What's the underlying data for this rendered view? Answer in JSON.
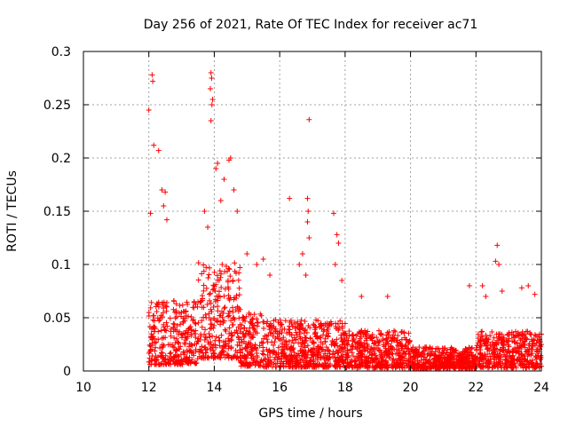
{
  "chart_data": {
    "type": "scatter",
    "title": "Day 256 of 2021, Rate Of TEC Index for receiver ac71",
    "xlabel": "GPS time / hours",
    "ylabel": "ROTI / TECUs",
    "xlim": [
      10,
      24
    ],
    "ylim": [
      0,
      0.3
    ],
    "x_ticks": [
      10,
      12,
      14,
      16,
      18,
      20,
      22,
      24
    ],
    "x_tick_labels": [
      "10",
      "12",
      "14",
      "16",
      "18",
      "20",
      "22",
      "24"
    ],
    "y_ticks": [
      0,
      0.05,
      0.1,
      0.15,
      0.2,
      0.25,
      0.3
    ],
    "y_tick_labels": [
      "0",
      "0.05",
      "0.1",
      "0.15",
      "0.2",
      "0.25",
      "0.3"
    ],
    "grid": true,
    "marker": "+",
    "color": "#ff0000",
    "series": [
      {
        "name": "ROTI",
        "points": [
          [
            12.0,
            0.245
          ],
          [
            12.1,
            0.278
          ],
          [
            12.12,
            0.272
          ],
          [
            12.15,
            0.212
          ],
          [
            12.3,
            0.207
          ],
          [
            13.9,
            0.28
          ],
          [
            13.92,
            0.275
          ],
          [
            13.88,
            0.265
          ],
          [
            13.95,
            0.255
          ],
          [
            13.93,
            0.25
          ],
          [
            13.9,
            0.235
          ],
          [
            16.9,
            0.236
          ],
          [
            16.3,
            0.162
          ],
          [
            16.85,
            0.162
          ],
          [
            17.65,
            0.148
          ],
          [
            14.5,
            0.2
          ],
          [
            14.45,
            0.198
          ],
          [
            14.1,
            0.195
          ],
          [
            14.05,
            0.19
          ],
          [
            12.05,
            0.148
          ],
          [
            12.4,
            0.17
          ],
          [
            12.5,
            0.168
          ],
          [
            12.45,
            0.155
          ],
          [
            12.55,
            0.142
          ],
          [
            22.65,
            0.118
          ],
          [
            22.6,
            0.103
          ],
          [
            22.7,
            0.1
          ],
          [
            17.75,
            0.128
          ],
          [
            17.8,
            0.12
          ],
          [
            16.85,
            0.14
          ],
          [
            16.87,
            0.15
          ],
          [
            16.9,
            0.125
          ],
          [
            14.3,
            0.18
          ],
          [
            14.6,
            0.17
          ],
          [
            14.2,
            0.16
          ],
          [
            13.7,
            0.15
          ],
          [
            13.8,
            0.135
          ],
          [
            14.7,
            0.15
          ],
          [
            15.0,
            0.11
          ],
          [
            15.3,
            0.1
          ],
          [
            15.5,
            0.105
          ],
          [
            15.7,
            0.09
          ],
          [
            16.6,
            0.1
          ],
          [
            16.7,
            0.11
          ],
          [
            16.8,
            0.09
          ],
          [
            17.7,
            0.1
          ],
          [
            17.9,
            0.085
          ],
          [
            18.5,
            0.07
          ],
          [
            19.3,
            0.07
          ],
          [
            21.8,
            0.08
          ],
          [
            22.2,
            0.08
          ],
          [
            22.3,
            0.07
          ],
          [
            22.8,
            0.075
          ],
          [
            23.4,
            0.078
          ],
          [
            23.6,
            0.08
          ],
          [
            23.8,
            0.072
          ]
        ]
      }
    ]
  }
}
